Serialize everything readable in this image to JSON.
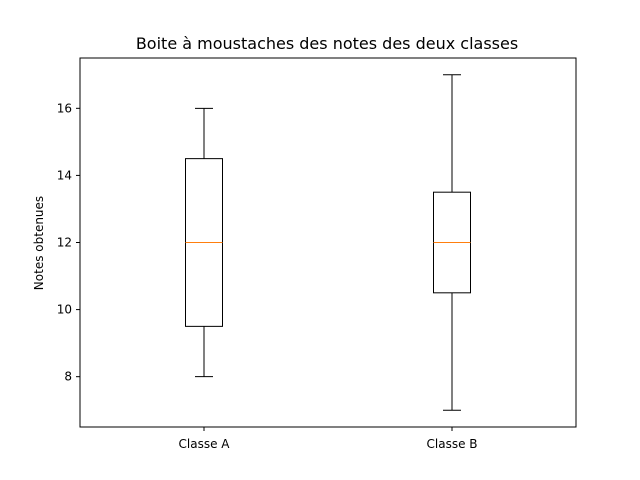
{
  "chart_data": {
    "type": "box",
    "title": "Boite à moustaches des notes des deux classes",
    "xlabel": "",
    "ylabel": "Notes obtenues",
    "categories": [
      "Classe A",
      "Classe B"
    ],
    "boxes": [
      {
        "label": "Classe A",
        "whisker_low": 8,
        "q1": 9.5,
        "median": 12,
        "q3": 14.5,
        "whisker_high": 16
      },
      {
        "label": "Classe B",
        "whisker_low": 7,
        "q1": 10.5,
        "median": 12,
        "q3": 13.5,
        "whisker_high": 17
      }
    ],
    "ylim": [
      6.5,
      17.5
    ],
    "yticks": [
      8,
      10,
      12,
      14,
      16
    ],
    "grid": false,
    "colors": {
      "box": "#000000",
      "median": "#ff7f0e"
    }
  }
}
